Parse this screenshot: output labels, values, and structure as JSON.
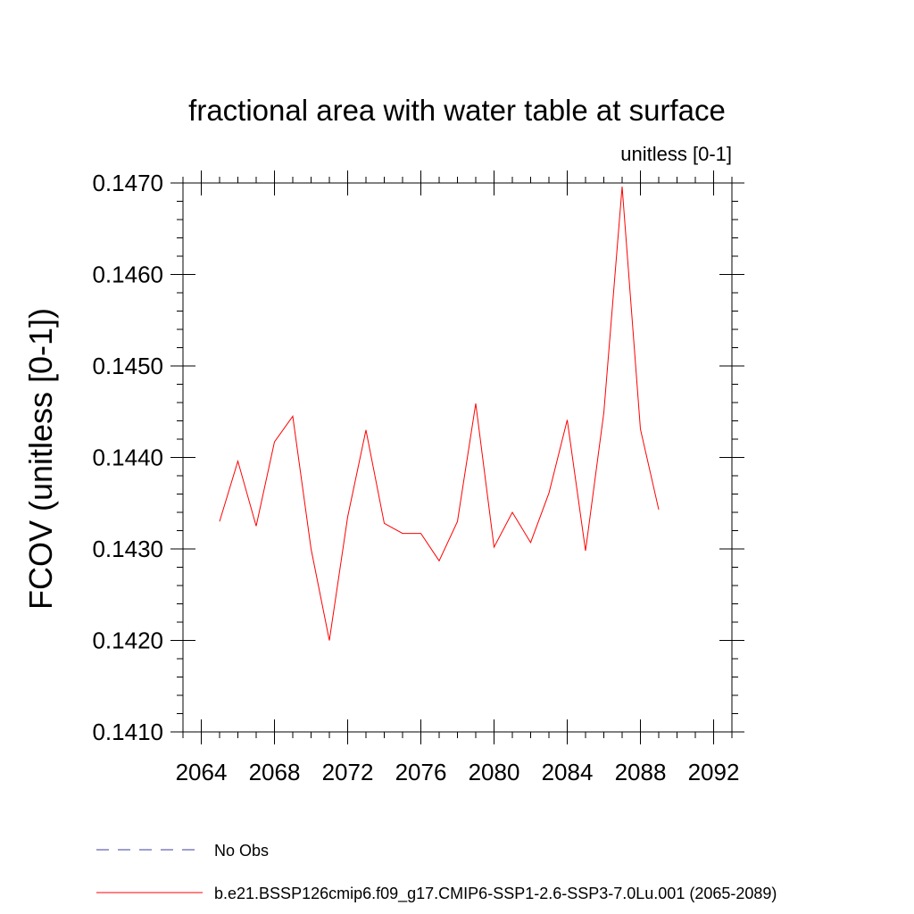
{
  "chart_data": {
    "type": "line",
    "title": "fractional area with water table at surface",
    "units_label": "unitless [0-1]",
    "xlabel": "",
    "ylabel": "FCOV  (unitless [0-1])",
    "xlim": [
      2063,
      2093
    ],
    "ylim": [
      0.141,
      0.147
    ],
    "x_ticks": [
      "2064",
      "2068",
      "2072",
      "2076",
      "2080",
      "2084",
      "2088",
      "2092"
    ],
    "y_ticks": [
      "0.1410",
      "0.1420",
      "0.1430",
      "0.1440",
      "0.1450",
      "0.1460",
      "0.1470"
    ],
    "grid": false,
    "legend_position": "bottom",
    "series": [
      {
        "name": "No Obs",
        "color": "#3c3ca0",
        "style": "dashed",
        "x": [],
        "values": []
      },
      {
        "name": "b.e21.BSSP126cmip6.f09_g17.CMIP6-SSP1-2.6-SSP3-7.0Lu.001 (2065-2089)",
        "color": "#ff0000",
        "style": "solid",
        "x": [
          2065,
          2066,
          2067,
          2068,
          2069,
          2070,
          2071,
          2072,
          2073,
          2074,
          2075,
          2076,
          2077,
          2078,
          2079,
          2080,
          2081,
          2082,
          2083,
          2084,
          2085,
          2086,
          2087,
          2088,
          2089
        ],
        "values": [
          0.1433,
          0.14396,
          0.14325,
          0.14417,
          0.14445,
          0.143,
          0.142,
          0.14335,
          0.1443,
          0.14328,
          0.14317,
          0.14317,
          0.14287,
          0.1433,
          0.14459,
          0.14302,
          0.1434,
          0.14307,
          0.14361,
          0.14441,
          0.14298,
          0.14449,
          0.14696,
          0.14431,
          0.14343
        ]
      }
    ]
  }
}
